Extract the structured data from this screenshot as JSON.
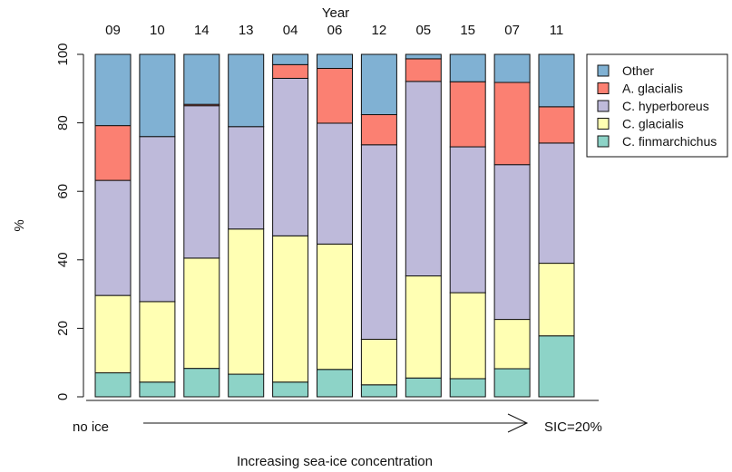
{
  "chart_data": {
    "type": "bar",
    "stacked": true,
    "top_axis_label": "Year",
    "categories": [
      "09",
      "10",
      "14",
      "13",
      "04",
      "06",
      "12",
      "05",
      "15",
      "07",
      "11"
    ],
    "ylabel": "%",
    "ylim": [
      0,
      100
    ],
    "yticks": [
      0,
      20,
      40,
      60,
      80,
      100
    ],
    "grid": false,
    "legend_position": "top-right",
    "series": [
      {
        "name": "C. finmarchichus",
        "color": "#8DD3C7",
        "values": [
          7,
          4.3,
          8.3,
          6.6,
          4.3,
          8,
          3.5,
          5.5,
          5.3,
          8.2,
          17.8
        ]
      },
      {
        "name": "C. glacialis",
        "color": "#FFFFB3",
        "values": [
          22.6,
          23.5,
          32.2,
          42.4,
          42.7,
          36.6,
          13.3,
          29.8,
          25.1,
          14.4,
          21.2
        ]
      },
      {
        "name": "C. hyperboreus",
        "color": "#BEBADA",
        "values": [
          33.6,
          48.2,
          44.5,
          29.9,
          46,
          35.3,
          56.8,
          56.8,
          42.6,
          45.2,
          35.1
        ]
      },
      {
        "name": "A. glacialis",
        "color": "#FB8072",
        "values": [
          16,
          0,
          0.4,
          0,
          4,
          16,
          8.8,
          6.6,
          19,
          24,
          10.6
        ]
      },
      {
        "name": "Other",
        "color": "#80B1D3",
        "values": [
          20.8,
          24,
          14.6,
          21.1,
          3,
          4.1,
          17.6,
          1.3,
          8,
          8.2,
          15.3
        ]
      }
    ],
    "annotation": {
      "left_label": "no ice",
      "right_label": "SIC=20%",
      "caption": "Increasing sea-ice concentration"
    }
  }
}
